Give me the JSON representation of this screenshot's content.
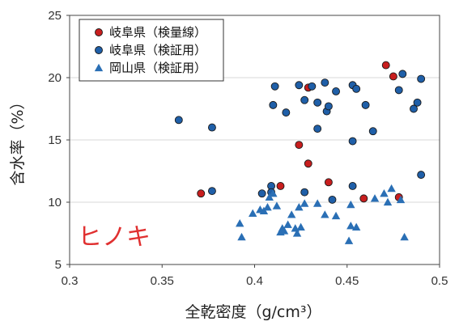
{
  "chart_data": {
    "type": "scatter",
    "title": "",
    "xlabel": "全乾密度（g/cm³）",
    "ylabel": "含水率（%）",
    "xlim": [
      0.3,
      0.5
    ],
    "ylim": [
      5,
      25
    ],
    "xticks": [
      "0.3",
      "0.35",
      "0.4",
      "0.45",
      "0.5"
    ],
    "yticks": [
      "5",
      "10",
      "15",
      "20",
      "25"
    ],
    "xtick_values": [
      0.3,
      0.35,
      0.4,
      0.45,
      0.5
    ],
    "ytick_values": [
      5,
      10,
      15,
      20,
      25
    ],
    "grid": "horizontal",
    "legend_position": "top-left",
    "annotation": {
      "text": "ヒノキ",
      "color": "#e03030"
    },
    "series": [
      {
        "name": "岐阜県（検量線）",
        "marker": "circle",
        "color": "#c81e1e",
        "points": [
          [
            0.371,
            10.7
          ],
          [
            0.414,
            11.3
          ],
          [
            0.424,
            14.6
          ],
          [
            0.429,
            19.2
          ],
          [
            0.429,
            13.1
          ],
          [
            0.44,
            11.6
          ],
          [
            0.459,
            10.3
          ],
          [
            0.471,
            21.0
          ],
          [
            0.475,
            20.1
          ],
          [
            0.478,
            10.4
          ]
        ]
      },
      {
        "name": "岐阜県（検証用）",
        "marker": "circle",
        "color": "#1f5fa8",
        "points": [
          [
            0.359,
            16.6
          ],
          [
            0.377,
            16.0
          ],
          [
            0.377,
            10.9
          ],
          [
            0.404,
            10.7
          ],
          [
            0.409,
            11.3
          ],
          [
            0.409,
            10.8
          ],
          [
            0.41,
            17.8
          ],
          [
            0.411,
            19.3
          ],
          [
            0.417,
            17.2
          ],
          [
            0.424,
            19.4
          ],
          [
            0.427,
            18.2
          ],
          [
            0.427,
            10.8
          ],
          [
            0.431,
            19.3
          ],
          [
            0.434,
            15.9
          ],
          [
            0.434,
            18.0
          ],
          [
            0.438,
            19.6
          ],
          [
            0.439,
            17.3
          ],
          [
            0.44,
            17.7
          ],
          [
            0.442,
            10.2
          ],
          [
            0.444,
            18.9
          ],
          [
            0.453,
            19.4
          ],
          [
            0.453,
            14.9
          ],
          [
            0.453,
            11.3
          ],
          [
            0.455,
            19.1
          ],
          [
            0.46,
            17.8
          ],
          [
            0.464,
            15.7
          ],
          [
            0.478,
            19.0
          ],
          [
            0.48,
            20.3
          ],
          [
            0.486,
            17.5
          ],
          [
            0.488,
            18.0
          ],
          [
            0.49,
            19.9
          ],
          [
            0.49,
            12.2
          ]
        ]
      },
      {
        "name": "岡山県（検証用）",
        "marker": "triangle",
        "color": "#2a6fb5",
        "points": [
          [
            0.392,
            8.3
          ],
          [
            0.393,
            7.2
          ],
          [
            0.399,
            9.1
          ],
          [
            0.403,
            9.4
          ],
          [
            0.405,
            9.3
          ],
          [
            0.407,
            9.6
          ],
          [
            0.408,
            10.4
          ],
          [
            0.41,
            10.7
          ],
          [
            0.412,
            9.7
          ],
          [
            0.414,
            7.6
          ],
          [
            0.415,
            7.9
          ],
          [
            0.416,
            7.7
          ],
          [
            0.418,
            8.2
          ],
          [
            0.42,
            9.0
          ],
          [
            0.422,
            7.9
          ],
          [
            0.423,
            7.5
          ],
          [
            0.424,
            9.6
          ],
          [
            0.425,
            8.0
          ],
          [
            0.427,
            9.9
          ],
          [
            0.434,
            9.9
          ],
          [
            0.438,
            9.0
          ],
          [
            0.444,
            8.9
          ],
          [
            0.451,
            6.9
          ],
          [
            0.452,
            8.1
          ],
          [
            0.452,
            9.8
          ],
          [
            0.455,
            8.0
          ],
          [
            0.465,
            10.3
          ],
          [
            0.47,
            10.7
          ],
          [
            0.472,
            10.0
          ],
          [
            0.474,
            11.1
          ],
          [
            0.479,
            10.2
          ],
          [
            0.481,
            7.2
          ]
        ]
      }
    ]
  }
}
